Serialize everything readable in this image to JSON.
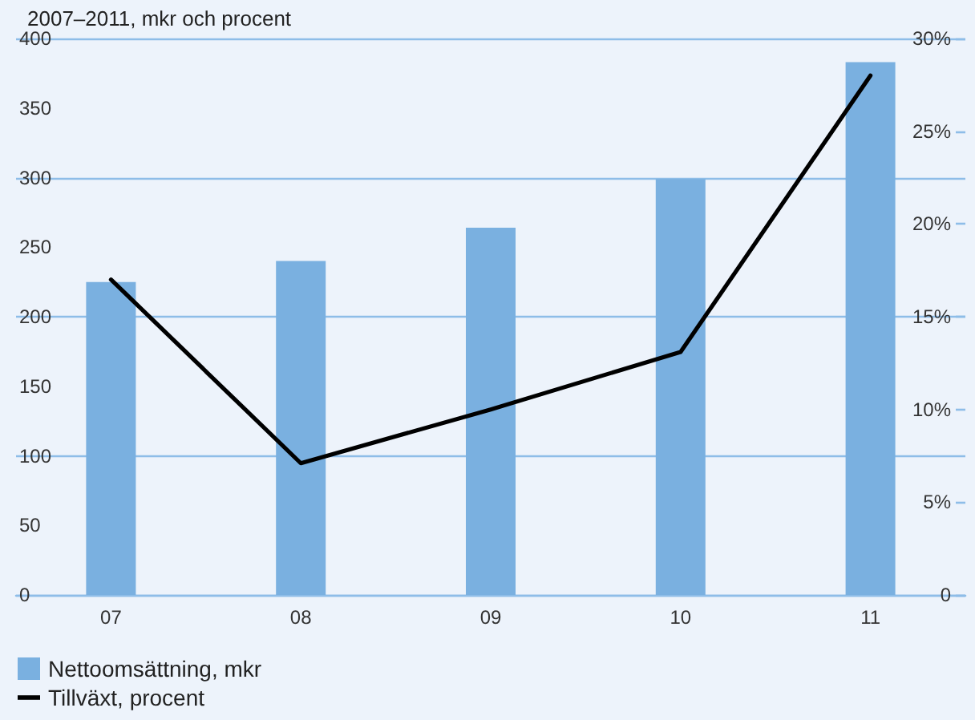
{
  "chart_data": {
    "type": "bar",
    "subtitle": "2007–2011, mkr och procent",
    "categories": [
      "07",
      "08",
      "09",
      "10",
      "11"
    ],
    "series": [
      {
        "name": "Nettoomsättning, mkr",
        "color": "#7ab0e0",
        "values": [
          225,
          240,
          264,
          299,
          383
        ]
      },
      {
        "name": "Tillväxt, procent",
        "type": "line",
        "axis": "y2",
        "color": "#000000",
        "values": [
          17.0,
          7.1,
          10.0,
          13.1,
          28.0
        ]
      }
    ],
    "ylim": [
      0,
      400
    ],
    "yticks": [
      0,
      50,
      100,
      150,
      200,
      250,
      300,
      350,
      400
    ],
    "y2lim": [
      0,
      30
    ],
    "y2ticks": [
      {
        "value": 0,
        "label": "0"
      },
      {
        "value": 5,
        "label": "5%"
      },
      {
        "value": 10,
        "label": "10%"
      },
      {
        "value": 15,
        "label": "15%"
      },
      {
        "value": 20,
        "label": "20%"
      },
      {
        "value": 25,
        "label": "25%"
      },
      {
        "value": 30,
        "label": "30%"
      }
    ],
    "grid": "y",
    "legend": "bottom left",
    "marker": "none",
    "line_style": "solid"
  }
}
